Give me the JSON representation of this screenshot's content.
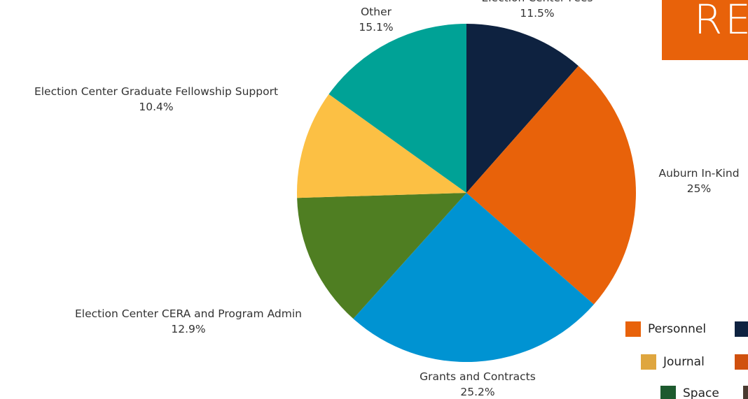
{
  "header": {
    "banner_text": "RE",
    "banner_color": "#e8620a"
  },
  "chart_data": {
    "type": "pie",
    "title": "",
    "start_angle": "12 o'clock, clockwise",
    "slices": [
      {
        "label": "Election Center Fees",
        "percent_label": "11.5%",
        "value": 11.5,
        "color": "#0e2240"
      },
      {
        "label": "Auburn In-Kind",
        "percent_label": "25%",
        "value": 25,
        "color": "#e8620a"
      },
      {
        "label": "Grants and Contracts",
        "percent_label": "25.2%",
        "value": 25.2,
        "color": "#0093d2"
      },
      {
        "label": "Election Center CERA and Program Admin",
        "percent_label": "12.9%",
        "value": 12.9,
        "color": "#4f7e22"
      },
      {
        "label": "Election Center Graduate Fellowship Support",
        "percent_label": "10.4%",
        "value": 10.4,
        "color": "#fcc044"
      },
      {
        "label": "Other",
        "percent_label": "15.1%",
        "value": 15.1,
        "color": "#00a296"
      }
    ]
  },
  "legend": {
    "items": [
      {
        "label": "Personnel",
        "color": "#e8620a"
      },
      {
        "label": "",
        "color": "#0e2240"
      },
      {
        "label": "Journal",
        "color": "#dfa63f"
      },
      {
        "label": "",
        "color": "#d0500e"
      },
      {
        "label": "Space",
        "color": "#1d5a2e"
      },
      {
        "label": "",
        "color": "#4a3a30"
      }
    ]
  }
}
